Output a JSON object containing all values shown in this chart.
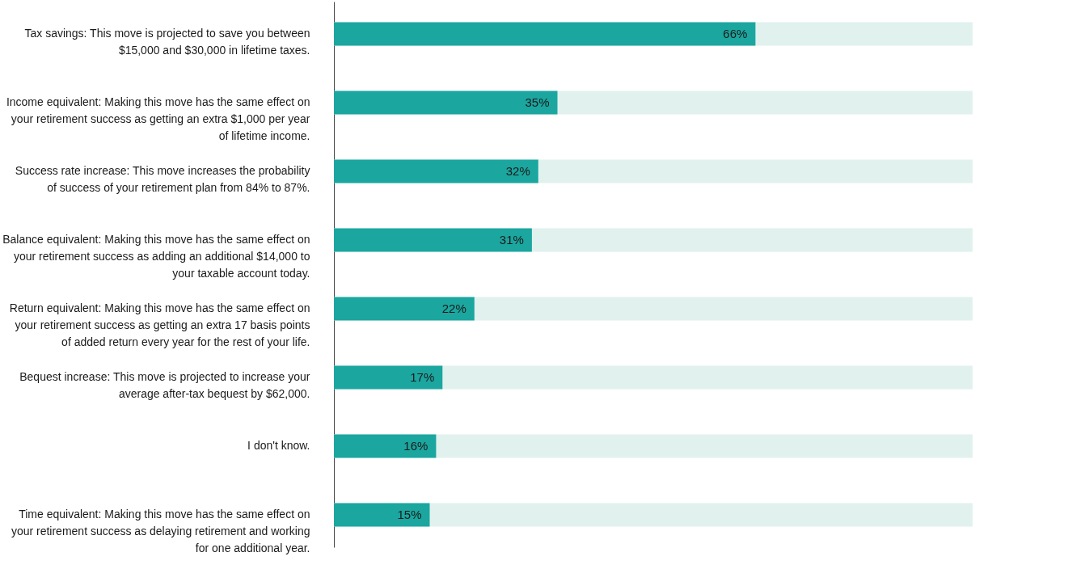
{
  "chart_data": {
    "type": "bar",
    "orientation": "horizontal",
    "categories": [
      "Tax savings: This move is projected to save you between $15,000 and $30,000 in lifetime taxes.",
      "Income equivalent: Making this move has the same effect on your retirement success as getting an extra $1,000 per year of lifetime income.",
      "Success rate increase: This move increases the probability of success of your retirement plan from 84% to 87%.",
      "Balance equivalent: Making this move has the same effect on your retirement success as adding an additional $14,000 to your taxable account today.",
      "Return equivalent: Making this move has the same effect on your retirement success as getting an extra 17 basis points of added return every year for the rest of your life.",
      "Bequest increase: This move is projected to increase your average after-tax bequest by $62,000.",
      "I don't know.",
      "Time equivalent: Making this move has the same effect on your retirement success as delaying retirement and working for one additional year."
    ],
    "values": [
      66,
      35,
      32,
      31,
      22,
      17,
      16,
      15
    ],
    "value_labels": [
      "66%",
      "35%",
      "32%",
      "31%",
      "22%",
      "17%",
      "16%",
      "15%"
    ],
    "color": "#1ba69f",
    "xlim": [
      0,
      100
    ],
    "tick_labels": "y"
  }
}
